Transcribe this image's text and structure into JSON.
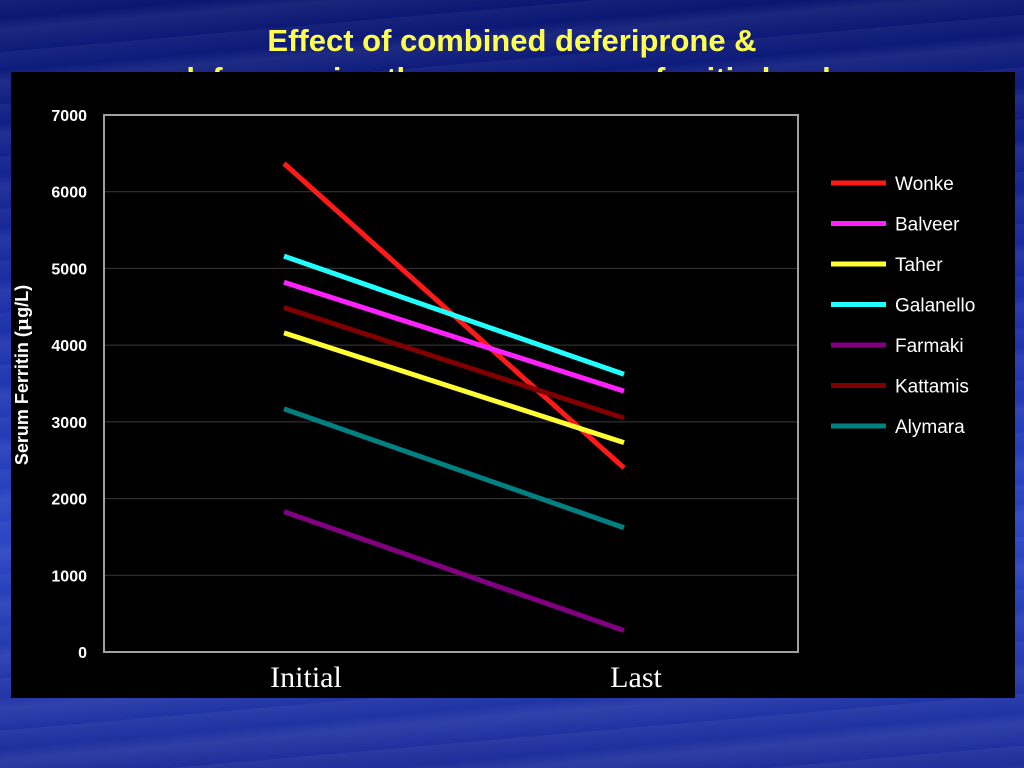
{
  "title": {
    "line1": "Effect of combined deferiprone &",
    "line2_plain": "deferoxamine therapy on ",
    "line2_underlined": "serum ferritin levels"
  },
  "chart_data": {
    "type": "line",
    "categories": [
      "Initial",
      "Last"
    ],
    "ylabel_prefix": "Serum Ferritin (",
    "ylabel_symbol": "μ",
    "ylabel_suffix": "g/L)",
    "ylim": [
      0,
      7000
    ],
    "yticks": [
      "0",
      "1000",
      "2000",
      "3000",
      "4000",
      "5000",
      "6000",
      "7000"
    ],
    "grid": true,
    "legend_position": "right",
    "series": [
      {
        "name": "Wonke",
        "color": "#ff1a1a",
        "values": [
          6370,
          2400
        ]
      },
      {
        "name": "Balveer",
        "color": "#ff22ff",
        "values": [
          4820,
          3400
        ]
      },
      {
        "name": "Taher",
        "color": "#ffff33",
        "values": [
          4160,
          2730
        ]
      },
      {
        "name": "Galanello",
        "color": "#22ffff",
        "values": [
          5160,
          3620
        ]
      },
      {
        "name": "Farmaki",
        "color": "#800080",
        "values": [
          1830,
          280
        ]
      },
      {
        "name": "Kattamis",
        "color": "#800000",
        "values": [
          4490,
          3050
        ]
      },
      {
        "name": "Alymara",
        "color": "#008080",
        "values": [
          3170,
          1620
        ]
      }
    ]
  }
}
